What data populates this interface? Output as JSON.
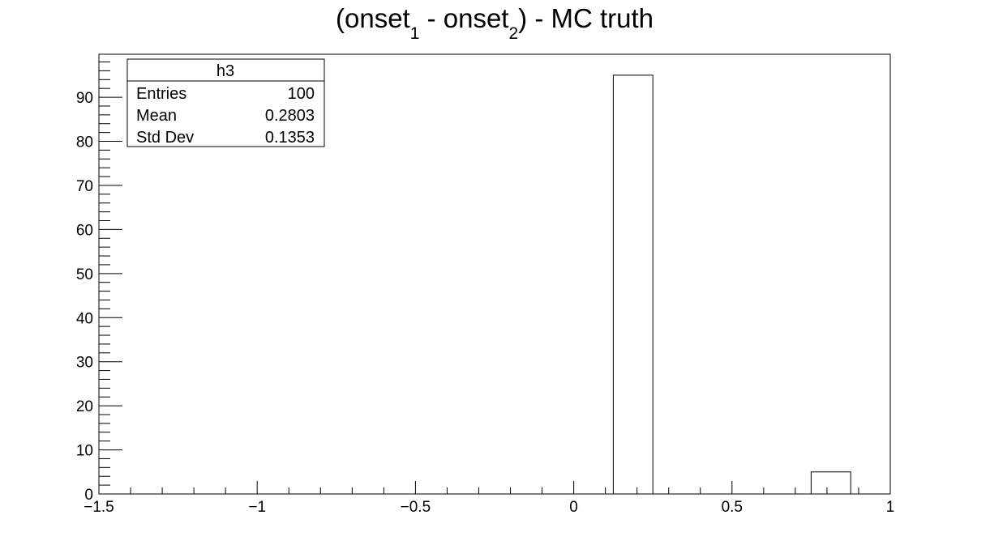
{
  "chart_data": {
    "type": "bar",
    "title_parts": {
      "open": "(onset",
      "sub1": "1",
      "middle": " - onset",
      "sub2": "2",
      "close": ") - MC truth"
    },
    "xlabel": "",
    "ylabel": "",
    "xlim": [
      -1.5,
      1.0
    ],
    "ylim": [
      0,
      99.75
    ],
    "bin_width": 0.125,
    "bins": [
      {
        "low": 0.125,
        "high": 0.25,
        "count": 95
      },
      {
        "low": 0.75,
        "high": 0.875,
        "count": 5
      }
    ],
    "x_tick_labels": [
      {
        "value": -1.5,
        "label": "−1.5"
      },
      {
        "value": -1.0,
        "label": "−1"
      },
      {
        "value": -0.5,
        "label": "−0.5"
      },
      {
        "value": 0.0,
        "label": "0"
      },
      {
        "value": 0.5,
        "label": "0.5"
      },
      {
        "value": 1.0,
        "label": "1"
      }
    ],
    "y_tick_labels": [
      {
        "value": 0,
        "label": "0"
      },
      {
        "value": 10,
        "label": "10"
      },
      {
        "value": 20,
        "label": "20"
      },
      {
        "value": 30,
        "label": "30"
      },
      {
        "value": 40,
        "label": "40"
      },
      {
        "value": 50,
        "label": "50"
      },
      {
        "value": 60,
        "label": "60"
      },
      {
        "value": 70,
        "label": "70"
      },
      {
        "value": 80,
        "label": "80"
      },
      {
        "value": 90,
        "label": "90"
      }
    ],
    "grid": false,
    "line_color": "#000000"
  },
  "stats_box": {
    "name": "h3",
    "placement": "top-left",
    "rows": [
      {
        "label": "Entries",
        "value": "100"
      },
      {
        "label": "Mean",
        "value": "0.2803"
      },
      {
        "label": "Std Dev",
        "value": "0.1353"
      }
    ]
  }
}
